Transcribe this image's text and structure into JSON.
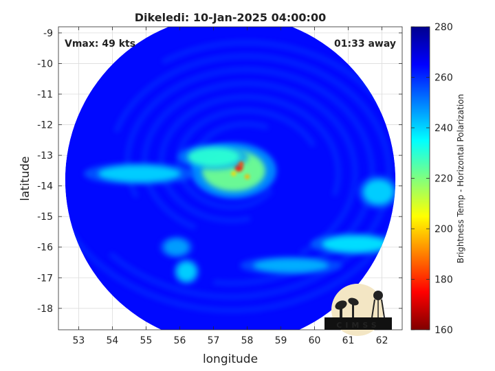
{
  "chart_data": {
    "type": "heatmap",
    "title": "Dikeledi: 10-Jan-2025 04:00:00",
    "xlabel": "longitude",
    "ylabel": "latitude",
    "xlim": [
      52.4,
      62.6
    ],
    "ylim": [
      -18.7,
      -8.8
    ],
    "xticks": [
      53,
      54,
      55,
      56,
      57,
      58,
      59,
      60,
      61,
      62
    ],
    "yticks": [
      -9,
      -10,
      -11,
      -12,
      -13,
      -14,
      -15,
      -16,
      -17,
      -18
    ],
    "grid": true,
    "annotations": {
      "top_left": "Vmax: 49 kts",
      "top_right": "01:33 away"
    },
    "colorbar": {
      "label": "Brightness Temp - Horizontal Polarization",
      "min": 160,
      "max": 280,
      "ticks": [
        280,
        260,
        240,
        220,
        200,
        180,
        160
      ],
      "colormap": "jet"
    },
    "swath": {
      "center_lon": 57.5,
      "center_lat": -13.8,
      "radius_deg": 4.9
    },
    "background_temp": 264,
    "features": [
      {
        "desc": "central dense overcast",
        "lon": 57.6,
        "lat": -13.5,
        "temp": 222
      },
      {
        "desc": "eye wall core",
        "lon": 57.75,
        "lat": -13.4,
        "temp": 178
      },
      {
        "desc": "inner band",
        "lon": 57.0,
        "lat": -13.05,
        "temp": 230
      },
      {
        "desc": "western band",
        "lon": 54.8,
        "lat": -13.6,
        "temp": 240
      },
      {
        "desc": "southeast band",
        "lon": 61.2,
        "lat": -15.9,
        "temp": 238
      },
      {
        "desc": "southern band",
        "lon": 59.3,
        "lat": -16.6,
        "temp": 244
      },
      {
        "desc": "southwest cluster",
        "lon": 55.9,
        "lat": -16.0,
        "temp": 246
      },
      {
        "desc": "south cluster",
        "lon": 56.2,
        "lat": -16.8,
        "temp": 240
      },
      {
        "desc": "eastern band",
        "lon": 61.9,
        "lat": -14.2,
        "temp": 240
      }
    ]
  },
  "logo": {
    "text": "CIMSS"
  }
}
